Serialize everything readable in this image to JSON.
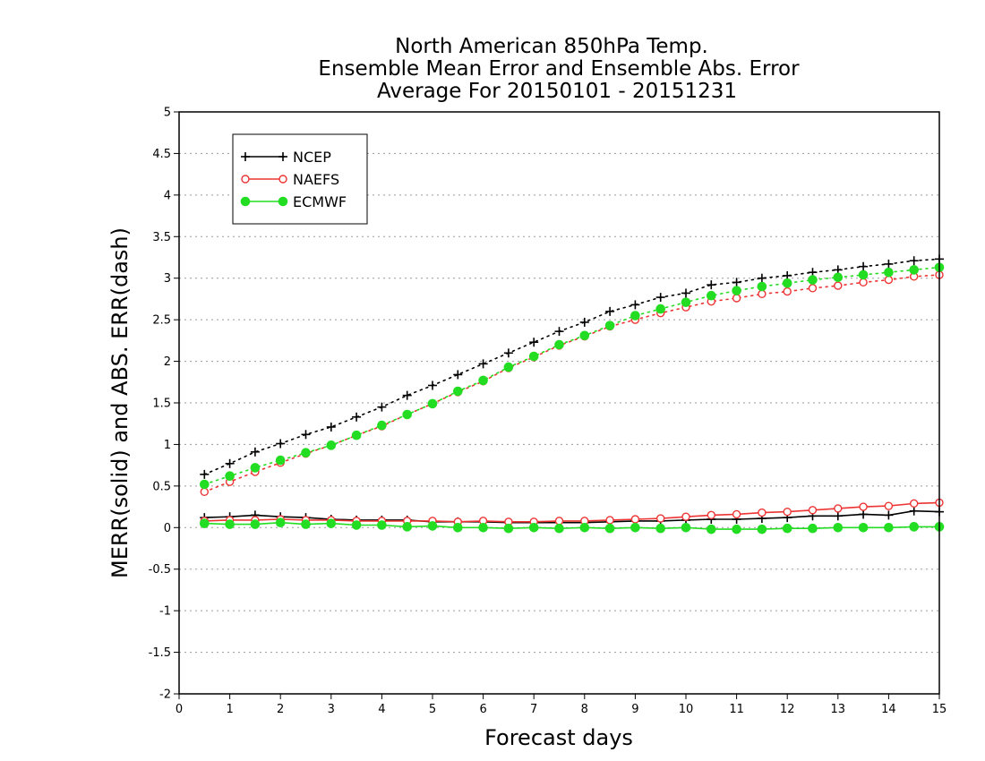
{
  "chart_data": {
    "type": "line",
    "title": [
      "North American 850hPa Temp.",
      "Ensemble Mean Error and Ensemble Abs. Error",
      "Average For 20150101 - 20151231"
    ],
    "xlabel": "Forecast days",
    "ylabel": "MERR(solid) and ABS. ERR(dash)",
    "xlim": [
      0,
      15
    ],
    "ylim": [
      -2,
      5
    ],
    "xticks": [
      "0",
      "1",
      "2",
      "3",
      "4",
      "5",
      "6",
      "7",
      "8",
      "9",
      "10",
      "11",
      "12",
      "13",
      "14",
      "15"
    ],
    "yticks": [
      "-2",
      "-1.5",
      "-1",
      "-0.5",
      "0",
      "0.5",
      "1",
      "1.5",
      "2",
      "2.5",
      "3",
      "3.5",
      "4",
      "4.5",
      "5"
    ],
    "grid": true,
    "legend_position": "top-left",
    "x": [
      0.5,
      1.0,
      1.5,
      2.0,
      2.5,
      3.0,
      3.5,
      4.0,
      4.5,
      5.0,
      5.5,
      6.0,
      6.5,
      7.0,
      7.5,
      8.0,
      8.5,
      9.0,
      9.5,
      10.0,
      10.5,
      11.0,
      11.5,
      12.0,
      12.5,
      13.0,
      13.5,
      14.0,
      14.5,
      15.0
    ],
    "series": [
      {
        "name": "NCEP",
        "color": "#000000",
        "marker": "plus",
        "abs_err": [
          0.64,
          0.77,
          0.91,
          1.01,
          1.12,
          1.21,
          1.33,
          1.45,
          1.59,
          1.71,
          1.84,
          1.97,
          2.1,
          2.23,
          2.36,
          2.47,
          2.6,
          2.68,
          2.77,
          2.82,
          2.92,
          2.95,
          3.0,
          3.03,
          3.07,
          3.1,
          3.14,
          3.17,
          3.21,
          3.23
        ],
        "mean_err": [
          0.12,
          0.13,
          0.15,
          0.13,
          0.12,
          0.1,
          0.09,
          0.09,
          0.09,
          0.07,
          0.07,
          0.07,
          0.06,
          0.06,
          0.06,
          0.06,
          0.07,
          0.08,
          0.08,
          0.09,
          0.1,
          0.1,
          0.11,
          0.12,
          0.14,
          0.14,
          0.16,
          0.15,
          0.2,
          0.19
        ]
      },
      {
        "name": "NAEFS",
        "color": "#ee3333",
        "marker": "open-circle",
        "abs_err": [
          0.43,
          0.55,
          0.67,
          0.78,
          0.89,
          0.99,
          1.11,
          1.22,
          1.36,
          1.49,
          1.63,
          1.76,
          1.92,
          2.05,
          2.19,
          2.3,
          2.42,
          2.5,
          2.58,
          2.65,
          2.72,
          2.76,
          2.81,
          2.84,
          2.88,
          2.91,
          2.95,
          2.98,
          3.02,
          3.04
        ],
        "mean_err": [
          0.08,
          0.09,
          0.09,
          0.1,
          0.09,
          0.09,
          0.08,
          0.08,
          0.08,
          0.08,
          0.07,
          0.08,
          0.07,
          0.07,
          0.08,
          0.08,
          0.09,
          0.1,
          0.11,
          0.13,
          0.15,
          0.16,
          0.18,
          0.19,
          0.21,
          0.23,
          0.25,
          0.26,
          0.29,
          0.3
        ]
      },
      {
        "name": "ECMWF",
        "color": "#22dd22",
        "marker": "filled-circle",
        "abs_err": [
          0.52,
          0.62,
          0.72,
          0.81,
          0.9,
          0.99,
          1.11,
          1.23,
          1.36,
          1.49,
          1.64,
          1.77,
          1.93,
          2.06,
          2.2,
          2.31,
          2.43,
          2.55,
          2.63,
          2.71,
          2.79,
          2.85,
          2.9,
          2.94,
          2.98,
          3.01,
          3.04,
          3.07,
          3.1,
          3.13
        ],
        "mean_err": [
          0.05,
          0.04,
          0.04,
          0.06,
          0.04,
          0.05,
          0.03,
          0.03,
          0.01,
          0.02,
          0.0,
          0.0,
          -0.01,
          0.0,
          -0.01,
          0.0,
          -0.01,
          0.0,
          -0.01,
          0.0,
          -0.02,
          -0.02,
          -0.02,
          -0.01,
          -0.01,
          0.0,
          0.0,
          0.0,
          0.01,
          0.01
        ]
      }
    ]
  }
}
